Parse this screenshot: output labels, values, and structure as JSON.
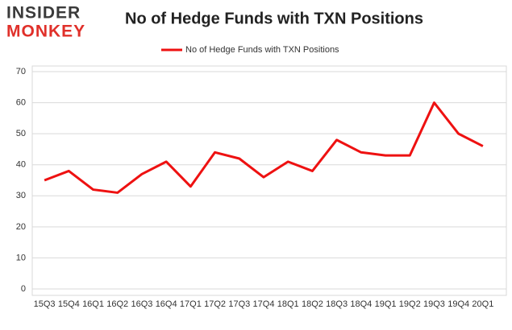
{
  "logo": {
    "line1": "INSIDER",
    "line2": "MONKEY"
  },
  "chart_data": {
    "type": "line",
    "title": "No of Hedge Funds with TXN Positions",
    "categories": [
      "15Q3",
      "15Q4",
      "16Q1",
      "16Q2",
      "16Q3",
      "16Q4",
      "17Q1",
      "17Q2",
      "17Q3",
      "17Q4",
      "18Q1",
      "18Q2",
      "18Q3",
      "18Q4",
      "19Q1",
      "19Q2",
      "19Q3",
      "19Q4",
      "20Q1"
    ],
    "series": [
      {
        "name": "No of Hedge Funds with TXN Positions",
        "color": "#ee1111",
        "values": [
          35,
          38,
          32,
          31,
          37,
          41,
          33,
          44,
          42,
          36,
          41,
          38,
          48,
          44,
          43,
          43,
          60,
          50,
          46
        ]
      }
    ],
    "ylim": [
      0,
      70
    ],
    "yticks": [
      0,
      10,
      20,
      30,
      40,
      50,
      60,
      70
    ],
    "grid": true,
    "legend": "top"
  }
}
